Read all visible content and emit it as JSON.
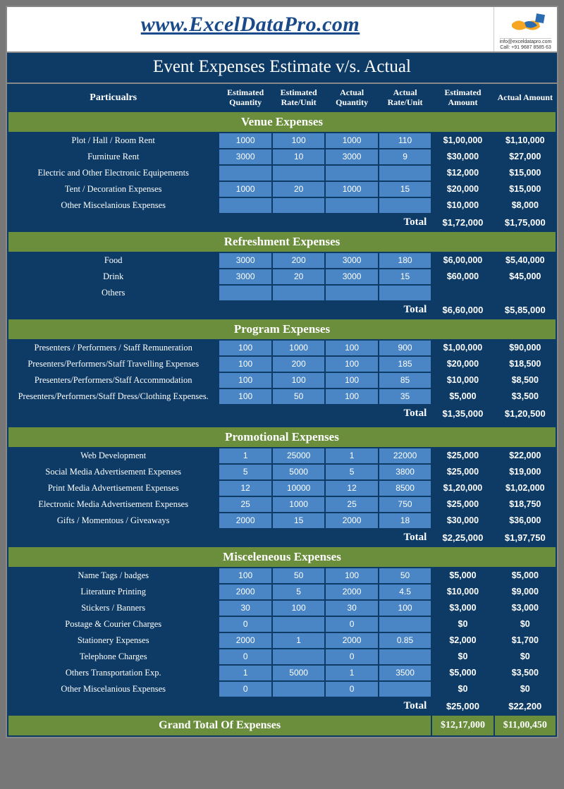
{
  "site": {
    "url": "www.ExcelDataPro.com",
    "email": "info@exceldatapro.com",
    "phone": "Call: +91 9687 8585 63"
  },
  "title": "Event Expenses Estimate v/s. Actual",
  "headers": {
    "particulars": "Particualrs",
    "est_qty": "Estimated Quantity",
    "est_rate": "Estimated Rate/Unit",
    "act_qty": "Actual Quantity",
    "act_rate": "Actual Rate/Unit",
    "est_amt": "Estimated Amount",
    "act_amt": "Actual Amount"
  },
  "labels": {
    "total": "Total",
    "grand": "Grand Total Of Expenses"
  },
  "grand_total": {
    "est": "$12,17,000",
    "act": "$11,00,450"
  },
  "sections": [
    {
      "name": "Venue Expenses",
      "rows": [
        {
          "p": "Plot / Hall / Room Rent",
          "eq": "1000",
          "er": "100",
          "aq": "1000",
          "ar": "110",
          "ea": "$1,00,000",
          "aa": "$1,10,000"
        },
        {
          "p": "Furniture Rent",
          "eq": "3000",
          "er": "10",
          "aq": "3000",
          "ar": "9",
          "ea": "$30,000",
          "aa": "$27,000"
        },
        {
          "p": "Electric and Other Electronic Equipements",
          "eq": "",
          "er": "",
          "aq": "",
          "ar": "",
          "ea": "$12,000",
          "aa": "$15,000"
        },
        {
          "p": "Tent / Decoration Expenses",
          "eq": "1000",
          "er": "20",
          "aq": "1000",
          "ar": "15",
          "ea": "$20,000",
          "aa": "$15,000"
        },
        {
          "p": "Other Miscelanious Expenses",
          "eq": "",
          "er": "",
          "aq": "",
          "ar": "",
          "ea": "$10,000",
          "aa": "$8,000"
        }
      ],
      "total": {
        "est": "$1,72,000",
        "act": "$1,75,000"
      }
    },
    {
      "name": "Refreshment Expenses",
      "rows": [
        {
          "p": "Food",
          "eq": "3000",
          "er": "200",
          "aq": "3000",
          "ar": "180",
          "ea": "$6,00,000",
          "aa": "$5,40,000"
        },
        {
          "p": "Drink",
          "eq": "3000",
          "er": "20",
          "aq": "3000",
          "ar": "15",
          "ea": "$60,000",
          "aa": "$45,000"
        },
        {
          "p": "Others",
          "eq": "",
          "er": "",
          "aq": "",
          "ar": "",
          "ea": "",
          "aa": ""
        }
      ],
      "total": {
        "est": "$6,60,000",
        "act": "$5,85,000"
      }
    },
    {
      "name": "Program Expenses",
      "rows": [
        {
          "p": "Presenters / Performers / Staff Remuneration",
          "eq": "100",
          "er": "1000",
          "aq": "100",
          "ar": "900",
          "ea": "$1,00,000",
          "aa": "$90,000"
        },
        {
          "p": "Presenters/Performers/Staff Travelling Expenses",
          "eq": "100",
          "er": "200",
          "aq": "100",
          "ar": "185",
          "ea": "$20,000",
          "aa": "$18,500"
        },
        {
          "p": "Presenters/Performers/Staff Accommodation",
          "eq": "100",
          "er": "100",
          "aq": "100",
          "ar": "85",
          "ea": "$10,000",
          "aa": "$8,500"
        },
        {
          "p": "Presenters/Performers/Staff Dress/Clothing Expenses.",
          "eq": "100",
          "er": "50",
          "aq": "100",
          "ar": "35",
          "ea": "$5,000",
          "aa": "$3,500"
        }
      ],
      "total": {
        "est": "$1,35,000",
        "act": "$1,20,500"
      },
      "gap_after": true
    },
    {
      "name": "Promotional Expenses",
      "rows": [
        {
          "p": "Web Development",
          "eq": "1",
          "er": "25000",
          "aq": "1",
          "ar": "22000",
          "ea": "$25,000",
          "aa": "$22,000"
        },
        {
          "p": "Social Media Advertisement Expenses",
          "eq": "5",
          "er": "5000",
          "aq": "5",
          "ar": "3800",
          "ea": "$25,000",
          "aa": "$19,000"
        },
        {
          "p": "Print Media Advertisement Expenses",
          "eq": "12",
          "er": "10000",
          "aq": "12",
          "ar": "8500",
          "ea": "$1,20,000",
          "aa": "$1,02,000"
        },
        {
          "p": "Electronic Media Advertisement Expenses",
          "eq": "25",
          "er": "1000",
          "aq": "25",
          "ar": "750",
          "ea": "$25,000",
          "aa": "$18,750"
        },
        {
          "p": "Gifts / Momentous / Giveaways",
          "eq": "2000",
          "er": "15",
          "aq": "2000",
          "ar": "18",
          "ea": "$30,000",
          "aa": "$36,000"
        }
      ],
      "total": {
        "est": "$2,25,000",
        "act": "$1,97,750"
      }
    },
    {
      "name": "Misceleneous Expenses",
      "rows": [
        {
          "p": "Name Tags / badges",
          "eq": "100",
          "er": "50",
          "aq": "100",
          "ar": "50",
          "ea": "$5,000",
          "aa": "$5,000"
        },
        {
          "p": "Literature Printing",
          "eq": "2000",
          "er": "5",
          "aq": "2000",
          "ar": "4.5",
          "ea": "$10,000",
          "aa": "$9,000"
        },
        {
          "p": "Stickers / Banners",
          "eq": "30",
          "er": "100",
          "aq": "30",
          "ar": "100",
          "ea": "$3,000",
          "aa": "$3,000"
        },
        {
          "p": "Postage & Courier Charges",
          "eq": "0",
          "er": "",
          "aq": "0",
          "ar": "",
          "ea": "$0",
          "aa": "$0"
        },
        {
          "p": "Stationery Expenses",
          "eq": "2000",
          "er": "1",
          "aq": "2000",
          "ar": "0.85",
          "ea": "$2,000",
          "aa": "$1,700"
        },
        {
          "p": "Telephone Charges",
          "eq": "0",
          "er": "",
          "aq": "0",
          "ar": "",
          "ea": "$0",
          "aa": "$0"
        },
        {
          "p": "Others Transportation Exp.",
          "eq": "1",
          "er": "5000",
          "aq": "1",
          "ar": "3500",
          "ea": "$5,000",
          "aa": "$3,500"
        },
        {
          "p": "Other Miscelanious Expenses",
          "eq": "0",
          "er": "",
          "aq": "0",
          "ar": "",
          "ea": "$0",
          "aa": "$0"
        }
      ],
      "total": {
        "est": "$25,000",
        "act": "$22,200"
      }
    }
  ],
  "colors": {
    "dark_blue": "#0d3b66",
    "light_blue": "#4a86c5",
    "olive": "#6b8e3d",
    "border": "#888888"
  }
}
